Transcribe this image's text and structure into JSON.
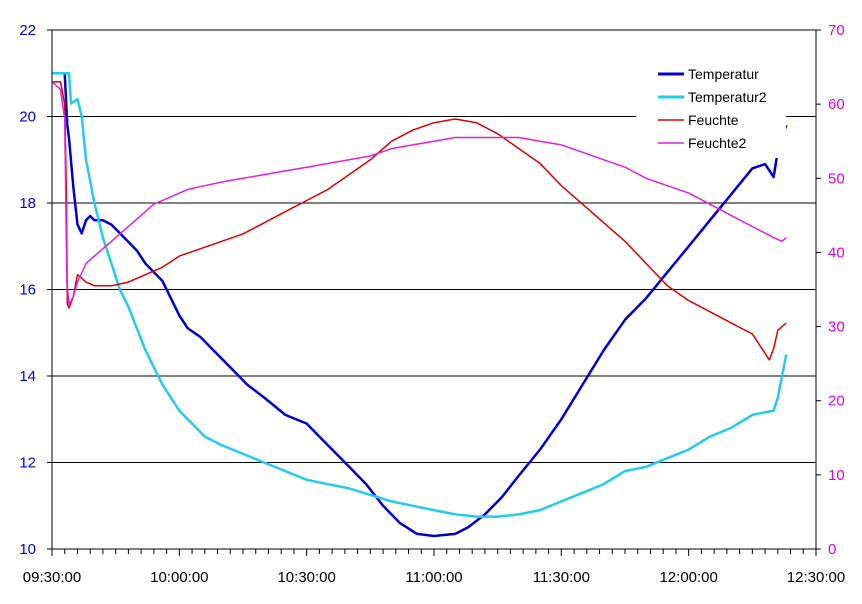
{
  "chart_data": {
    "type": "line",
    "title": "",
    "xlabel": "",
    "ylabel_left": "",
    "ylabel_right": "",
    "x_ticks": [
      "09:30:00",
      "10:00:00",
      "10:30:00",
      "11:00:00",
      "11:30:00",
      "12:00:00",
      "12:30:00"
    ],
    "x_range_minutes": [
      0,
      180
    ],
    "y_left": {
      "min": 10,
      "max": 22,
      "ticks": [
        10,
        12,
        14,
        16,
        18,
        20,
        22
      ]
    },
    "y_right": {
      "min": 0,
      "max": 70,
      "ticks": [
        0,
        10,
        20,
        30,
        40,
        50,
        60,
        70
      ]
    },
    "grid": "horizontal",
    "legend_position": "top-right",
    "series": [
      {
        "name": "Temperatur",
        "axis": "left",
        "color": "#0000cc",
        "points": [
          [
            0,
            21.0
          ],
          [
            3,
            21.0
          ],
          [
            3.6,
            19.8
          ],
          [
            4,
            19.5
          ],
          [
            5,
            18.4
          ],
          [
            6,
            17.5
          ],
          [
            7,
            17.3
          ],
          [
            8,
            17.6
          ],
          [
            9,
            17.7
          ],
          [
            10,
            17.6
          ],
          [
            12,
            17.6
          ],
          [
            14,
            17.5
          ],
          [
            16,
            17.3
          ],
          [
            18,
            17.1
          ],
          [
            20,
            16.9
          ],
          [
            22,
            16.6
          ],
          [
            24,
            16.4
          ],
          [
            26,
            16.2
          ],
          [
            28,
            15.8
          ],
          [
            30,
            15.4
          ],
          [
            32,
            15.1
          ],
          [
            35,
            14.9
          ],
          [
            38,
            14.6
          ],
          [
            42,
            14.2
          ],
          [
            46,
            13.8
          ],
          [
            50,
            13.5
          ],
          [
            55,
            13.1
          ],
          [
            60,
            12.9
          ],
          [
            63,
            12.6
          ],
          [
            66,
            12.3
          ],
          [
            70,
            11.9
          ],
          [
            74,
            11.5
          ],
          [
            78,
            11.0
          ],
          [
            82,
            10.6
          ],
          [
            86,
            10.35
          ],
          [
            90,
            10.3
          ],
          [
            95,
            10.35
          ],
          [
            98,
            10.5
          ],
          [
            102,
            10.8
          ],
          [
            106,
            11.2
          ],
          [
            110,
            11.7
          ],
          [
            115,
            12.3
          ],
          [
            120,
            13.0
          ],
          [
            125,
            13.8
          ],
          [
            130,
            14.6
          ],
          [
            135,
            15.3
          ],
          [
            140,
            15.8
          ],
          [
            145,
            16.4
          ],
          [
            150,
            17.0
          ],
          [
            155,
            17.6
          ],
          [
            160,
            18.2
          ],
          [
            165,
            18.8
          ],
          [
            168,
            18.9
          ],
          [
            170,
            18.6
          ],
          [
            171,
            19.2
          ],
          [
            173,
            19.8
          ]
        ]
      },
      {
        "name": "Temperatur2",
        "axis": "left",
        "color": "#22ccee",
        "points": [
          [
            0,
            21.0
          ],
          [
            4,
            21.0
          ],
          [
            4.5,
            20.3
          ],
          [
            6,
            20.4
          ],
          [
            7,
            20.0
          ],
          [
            8,
            19.0
          ],
          [
            10,
            18.0
          ],
          [
            12,
            17.2
          ],
          [
            14,
            16.6
          ],
          [
            16,
            16.0
          ],
          [
            18,
            15.6
          ],
          [
            20,
            15.1
          ],
          [
            22,
            14.6
          ],
          [
            24,
            14.2
          ],
          [
            26,
            13.8
          ],
          [
            28,
            13.5
          ],
          [
            30,
            13.2
          ],
          [
            33,
            12.9
          ],
          [
            36,
            12.6
          ],
          [
            40,
            12.4
          ],
          [
            45,
            12.2
          ],
          [
            50,
            12.0
          ],
          [
            55,
            11.8
          ],
          [
            60,
            11.6
          ],
          [
            65,
            11.5
          ],
          [
            70,
            11.4
          ],
          [
            75,
            11.25
          ],
          [
            80,
            11.1
          ],
          [
            85,
            11.0
          ],
          [
            90,
            10.9
          ],
          [
            95,
            10.8
          ],
          [
            100,
            10.75
          ],
          [
            105,
            10.75
          ],
          [
            110,
            10.8
          ],
          [
            115,
            10.9
          ],
          [
            120,
            11.1
          ],
          [
            125,
            11.3
          ],
          [
            130,
            11.5
          ],
          [
            135,
            11.8
          ],
          [
            140,
            11.9
          ],
          [
            145,
            12.1
          ],
          [
            150,
            12.3
          ],
          [
            155,
            12.6
          ],
          [
            160,
            12.8
          ],
          [
            165,
            13.1
          ],
          [
            170,
            13.2
          ],
          [
            171,
            13.5
          ],
          [
            173,
            14.5
          ]
        ]
      },
      {
        "name": "Feuchte",
        "axis": "right",
        "color": "#dd0000",
        "points": [
          [
            0,
            63
          ],
          [
            2,
            63
          ],
          [
            3,
            60
          ],
          [
            3.4,
            48
          ],
          [
            3.6,
            33
          ],
          [
            4,
            32.5
          ],
          [
            5,
            34
          ],
          [
            6,
            37
          ],
          [
            8,
            36
          ],
          [
            10,
            35.5
          ],
          [
            14,
            35.5
          ],
          [
            18,
            36
          ],
          [
            22,
            37
          ],
          [
            26,
            38
          ],
          [
            30,
            39.5
          ],
          [
            35,
            40.5
          ],
          [
            40,
            41.5
          ],
          [
            45,
            42.5
          ],
          [
            50,
            44
          ],
          [
            55,
            45.5
          ],
          [
            60,
            47
          ],
          [
            65,
            48.5
          ],
          [
            70,
            50.5
          ],
          [
            75,
            52.5
          ],
          [
            80,
            55
          ],
          [
            85,
            56.5
          ],
          [
            90,
            57.5
          ],
          [
            95,
            58
          ],
          [
            100,
            57.5
          ],
          [
            105,
            56
          ],
          [
            110,
            54
          ],
          [
            115,
            52
          ],
          [
            120,
            49
          ],
          [
            125,
            46.5
          ],
          [
            130,
            44
          ],
          [
            135,
            41.5
          ],
          [
            140,
            38.5
          ],
          [
            145,
            35.5
          ],
          [
            150,
            33.5
          ],
          [
            155,
            32
          ],
          [
            160,
            30.5
          ],
          [
            165,
            29
          ],
          [
            169,
            25.5
          ],
          [
            170,
            27
          ],
          [
            171,
            29.5
          ],
          [
            173,
            30.5
          ]
        ]
      },
      {
        "name": "Feuchte2",
        "axis": "right",
        "color": "#dd22dd",
        "points": [
          [
            0,
            63
          ],
          [
            2,
            62
          ],
          [
            3,
            58
          ],
          [
            3.5,
            36
          ],
          [
            4,
            33
          ],
          [
            5,
            34
          ],
          [
            6,
            36
          ],
          [
            8,
            38.5
          ],
          [
            10,
            39.5
          ],
          [
            13,
            41
          ],
          [
            16,
            42.5
          ],
          [
            20,
            44.5
          ],
          [
            24,
            46.5
          ],
          [
            28,
            47.5
          ],
          [
            32,
            48.5
          ],
          [
            36,
            49
          ],
          [
            40,
            49.5
          ],
          [
            45,
            50
          ],
          [
            50,
            50.5
          ],
          [
            55,
            51
          ],
          [
            60,
            51.5
          ],
          [
            65,
            52
          ],
          [
            70,
            52.5
          ],
          [
            75,
            53
          ],
          [
            80,
            54
          ],
          [
            85,
            54.5
          ],
          [
            90,
            55
          ],
          [
            95,
            55.5
          ],
          [
            100,
            55.5
          ],
          [
            105,
            55.5
          ],
          [
            110,
            55.5
          ],
          [
            115,
            55
          ],
          [
            120,
            54.5
          ],
          [
            125,
            53.5
          ],
          [
            130,
            52.5
          ],
          [
            135,
            51.5
          ],
          [
            140,
            50
          ],
          [
            145,
            49
          ],
          [
            150,
            48
          ],
          [
            155,
            46.5
          ],
          [
            160,
            45
          ],
          [
            165,
            43.5
          ],
          [
            170,
            42
          ],
          [
            172,
            41.5
          ],
          [
            173,
            42
          ]
        ]
      }
    ]
  }
}
